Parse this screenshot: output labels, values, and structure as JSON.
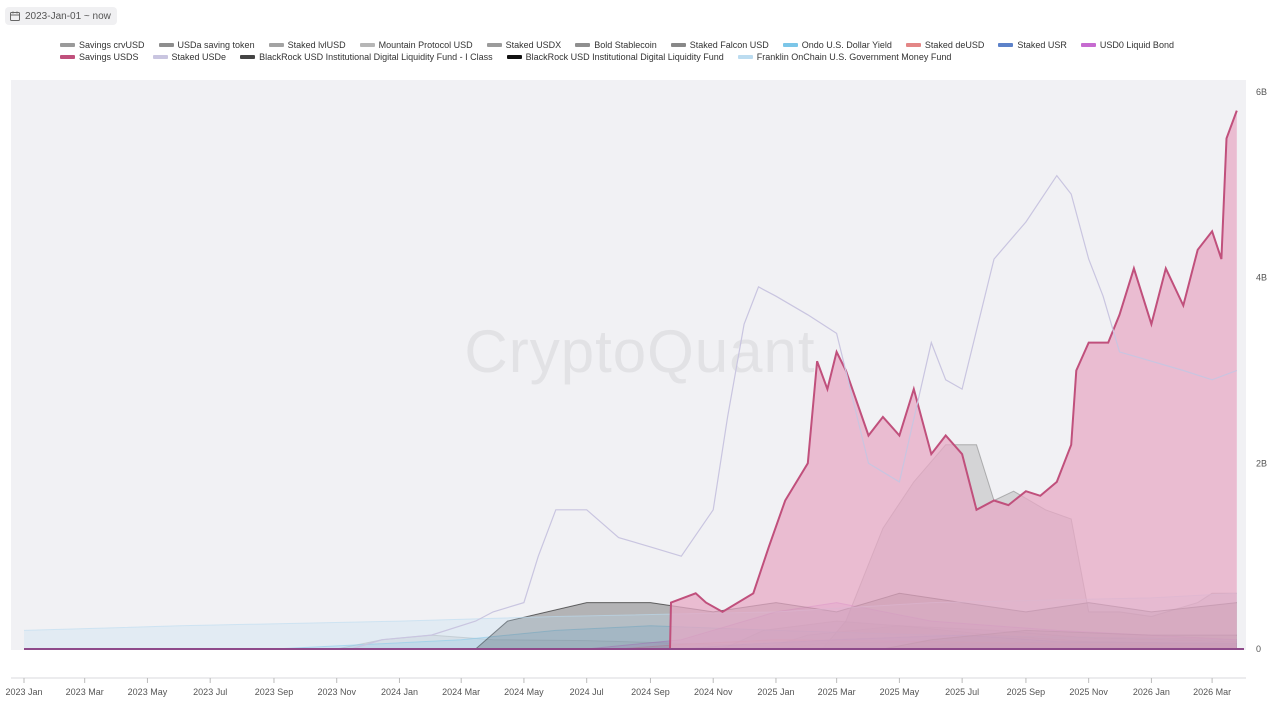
{
  "date_filter": {
    "label": "2023-Jan-01 ~ now"
  },
  "watermark": "CryptoQuant",
  "colors": {
    "background_panel": "#f1f1f4",
    "primary_line": "#c0507c",
    "primary_fill": "#e7a9c5",
    "gray_fill": "#a8a0ab",
    "lavender_line": "#c9c5e0"
  },
  "chart_data": {
    "type": "area",
    "title": "",
    "xlabel": "",
    "ylabel": "",
    "ylim": [
      0,
      6000000000
    ],
    "x_range": [
      "2023-01",
      "2026-04"
    ],
    "grid": false,
    "legend_position": "top",
    "x_ticks": [
      "2023 Jan",
      "2023 Mar",
      "2023 May",
      "2023 Jul",
      "2023 Sep",
      "2023 Nov",
      "2024 Jan",
      "2024 Mar",
      "2024 May",
      "2024 Jul",
      "2024 Sep",
      "2024 Nov",
      "2025 Jan",
      "2025 Mar",
      "2025 May",
      "2025 Jul",
      "2025 Sep",
      "2025 Nov",
      "2026 Jan",
      "2026 Mar"
    ],
    "y_ticks": [
      {
        "value": 0,
        "label": "0"
      },
      {
        "value": 2000000000,
        "label": "2B"
      },
      {
        "value": 4000000000,
        "label": "4B"
      },
      {
        "value": 6000000000,
        "label": "6B"
      }
    ],
    "series": [
      {
        "name": "Savings crvUSD",
        "color": "#9a9a9a",
        "style": "area",
        "points": [
          [
            "2025-02-01",
            0
          ],
          [
            "2025-03-01",
            20000000
          ],
          [
            "2025-06-01",
            30000000
          ],
          [
            "2025-09-01",
            25000000
          ],
          [
            "2026-03-25",
            20000000
          ]
        ]
      },
      {
        "name": "USDa saving token",
        "color": "#8e8e8e",
        "style": "area",
        "points": [
          [
            "2025-01-01",
            0
          ],
          [
            "2025-02-15",
            60000000
          ],
          [
            "2025-06-01",
            80000000
          ],
          [
            "2025-10-01",
            50000000
          ],
          [
            "2026-03-25",
            40000000
          ]
        ]
      },
      {
        "name": "Staked lvlUSD",
        "color": "#a3a3a3",
        "style": "area",
        "points": [
          [
            "2024-12-20",
            0
          ],
          [
            "2025-02-01",
            150000000
          ],
          [
            "2025-05-01",
            250000000
          ],
          [
            "2025-08-01",
            200000000
          ],
          [
            "2025-11-01",
            120000000
          ],
          [
            "2026-03-25",
            80000000
          ]
        ]
      },
      {
        "name": "Mountain Protocol USD",
        "color": "#b6b6b6",
        "style": "area",
        "points": [
          [
            "2023-11-01",
            0
          ],
          [
            "2023-12-15",
            100000000
          ],
          [
            "2024-02-01",
            150000000
          ],
          [
            "2024-04-01",
            100000000
          ],
          [
            "2024-07-01",
            90000000
          ],
          [
            "2024-10-01",
            60000000
          ],
          [
            "2025-01-01",
            30000000
          ],
          [
            "2025-06-01",
            0
          ]
        ]
      },
      {
        "name": "Staked USDX",
        "color": "#9b9b9b",
        "style": "area",
        "points": [
          [
            "2024-11-10",
            0
          ],
          [
            "2024-12-20",
            200000000
          ],
          [
            "2025-03-01",
            300000000
          ],
          [
            "2025-05-01",
            250000000
          ],
          [
            "2025-08-01",
            150000000
          ],
          [
            "2025-11-01",
            80000000
          ],
          [
            "2026-03-25",
            50000000
          ]
        ]
      },
      {
        "name": "Bold Stablecoin",
        "color": "#8f8f8f",
        "style": "area",
        "points": [
          [
            "2025-05-15",
            0
          ],
          [
            "2025-06-15",
            50000000
          ],
          [
            "2025-09-01",
            70000000
          ],
          [
            "2026-03-25",
            60000000
          ]
        ]
      },
      {
        "name": "Staked Falcon USD",
        "color": "#888888",
        "style": "area",
        "points": [
          [
            "2025-02-15",
            0
          ],
          [
            "2025-03-10",
            300000000
          ],
          [
            "2025-04-15",
            1300000000
          ],
          [
            "2025-05-15",
            1800000000
          ],
          [
            "2025-06-15",
            2200000000
          ],
          [
            "2025-07-15",
            2200000000
          ],
          [
            "2025-08-01",
            1600000000
          ],
          [
            "2025-08-20",
            1700000000
          ],
          [
            "2025-09-20",
            1500000000
          ],
          [
            "2025-10-15",
            1400000000
          ],
          [
            "2025-11-01",
            400000000
          ],
          [
            "2025-12-01",
            400000000
          ],
          [
            "2026-01-01",
            350000000
          ],
          [
            "2026-02-15",
            500000000
          ],
          [
            "2026-03-01",
            600000000
          ],
          [
            "2026-03-25",
            600000000
          ]
        ]
      },
      {
        "name": "Ondo U.S. Dollar Yield",
        "color": "#7cc6e8",
        "style": "area",
        "points": [
          [
            "2023-09-01",
            0
          ],
          [
            "2023-12-01",
            50000000
          ],
          [
            "2024-03-01",
            100000000
          ],
          [
            "2024-06-01",
            200000000
          ],
          [
            "2024-09-01",
            250000000
          ],
          [
            "2025-01-01",
            200000000
          ],
          [
            "2025-06-01",
            150000000
          ],
          [
            "2026-03-25",
            100000000
          ]
        ]
      },
      {
        "name": "Staked deUSD",
        "color": "#e38686",
        "style": "area",
        "points": [
          [
            "2024-08-01",
            0
          ],
          [
            "2024-10-01",
            50000000
          ],
          [
            "2025-01-01",
            100000000
          ],
          [
            "2025-06-01",
            80000000
          ],
          [
            "2026-03-25",
            20000000
          ]
        ]
      },
      {
        "name": "Staked USR",
        "color": "#5d82c9",
        "style": "area",
        "points": [
          [
            "2024-10-01",
            0
          ],
          [
            "2024-12-01",
            50000000
          ],
          [
            "2025-03-01",
            100000000
          ],
          [
            "2025-07-01",
            150000000
          ],
          [
            "2025-10-01",
            80000000
          ],
          [
            "2026-03-25",
            60000000
          ]
        ]
      },
      {
        "name": "USD0 Liquid Bond",
        "color": "#c66bd0",
        "style": "area",
        "points": [
          [
            "2024-07-01",
            0
          ],
          [
            "2024-10-01",
            100000000
          ],
          [
            "2025-01-01",
            400000000
          ],
          [
            "2025-03-01",
            500000000
          ],
          [
            "2025-06-01",
            300000000
          ],
          [
            "2025-10-01",
            200000000
          ],
          [
            "2026-03-25",
            100000000
          ]
        ]
      },
      {
        "name": "Savings USDS",
        "color": "#c0507c",
        "style": "area",
        "emphasis": true,
        "points": [
          [
            "2023-01-01",
            0
          ],
          [
            "2024-09-20",
            0
          ],
          [
            "2024-09-21",
            500000000
          ],
          [
            "2024-10-15",
            600000000
          ],
          [
            "2024-10-25",
            500000000
          ],
          [
            "2024-11-10",
            400000000
          ],
          [
            "2024-12-10",
            600000000
          ],
          [
            "2024-12-25",
            1100000000
          ],
          [
            "2025-01-10",
            1600000000
          ],
          [
            "2025-02-01",
            2000000000
          ],
          [
            "2025-02-10",
            3100000000
          ],
          [
            "2025-02-20",
            2800000000
          ],
          [
            "2025-03-01",
            3200000000
          ],
          [
            "2025-03-10",
            3000000000
          ],
          [
            "2025-04-01",
            2300000000
          ],
          [
            "2025-04-15",
            2500000000
          ],
          [
            "2025-05-01",
            2300000000
          ],
          [
            "2025-05-15",
            2800000000
          ],
          [
            "2025-06-01",
            2100000000
          ],
          [
            "2025-06-15",
            2300000000
          ],
          [
            "2025-07-01",
            2100000000
          ],
          [
            "2025-07-15",
            1500000000
          ],
          [
            "2025-08-01",
            1600000000
          ],
          [
            "2025-08-15",
            1550000000
          ],
          [
            "2025-09-01",
            1700000000
          ],
          [
            "2025-09-15",
            1650000000
          ],
          [
            "2025-10-01",
            1800000000
          ],
          [
            "2025-10-15",
            2200000000
          ],
          [
            "2025-10-20",
            3000000000
          ],
          [
            "2025-11-01",
            3300000000
          ],
          [
            "2025-11-20",
            3300000000
          ],
          [
            "2025-12-01",
            3600000000
          ],
          [
            "2025-12-15",
            4100000000
          ],
          [
            "2026-01-01",
            3500000000
          ],
          [
            "2026-01-15",
            4100000000
          ],
          [
            "2026-02-01",
            3700000000
          ],
          [
            "2026-02-15",
            4300000000
          ],
          [
            "2026-03-01",
            4500000000
          ],
          [
            "2026-03-10",
            4200000000
          ],
          [
            "2026-03-15",
            5500000000
          ],
          [
            "2026-03-25",
            5800000000
          ]
        ]
      },
      {
        "name": "Staked USDe",
        "color": "#c9c5e0",
        "style": "line",
        "points": [
          [
            "2023-01-01",
            0
          ],
          [
            "2023-11-15",
            0
          ],
          [
            "2023-12-15",
            100000000
          ],
          [
            "2024-02-01",
            150000000
          ],
          [
            "2024-03-15",
            300000000
          ],
          [
            "2024-04-01",
            400000000
          ],
          [
            "2024-05-01",
            500000000
          ],
          [
            "2024-05-15",
            1000000000
          ],
          [
            "2024-06-01",
            1500000000
          ],
          [
            "2024-07-01",
            1500000000
          ],
          [
            "2024-08-01",
            1200000000
          ],
          [
            "2024-09-01",
            1100000000
          ],
          [
            "2024-10-01",
            1000000000
          ],
          [
            "2024-11-01",
            1500000000
          ],
          [
            "2024-11-15",
            2500000000
          ],
          [
            "2024-12-01",
            3500000000
          ],
          [
            "2024-12-15",
            3900000000
          ],
          [
            "2025-01-01",
            3800000000
          ],
          [
            "2025-02-01",
            3600000000
          ],
          [
            "2025-03-01",
            3400000000
          ],
          [
            "2025-04-01",
            2000000000
          ],
          [
            "2025-05-01",
            1800000000
          ],
          [
            "2025-06-01",
            3300000000
          ],
          [
            "2025-06-15",
            2900000000
          ],
          [
            "2025-07-01",
            2800000000
          ],
          [
            "2025-08-01",
            4200000000
          ],
          [
            "2025-09-01",
            4600000000
          ],
          [
            "2025-10-01",
            5100000000
          ],
          [
            "2025-10-15",
            4900000000
          ],
          [
            "2025-11-01",
            4200000000
          ],
          [
            "2025-11-15",
            3800000000
          ],
          [
            "2025-12-01",
            3200000000
          ],
          [
            "2026-01-01",
            3100000000
          ],
          [
            "2026-02-01",
            3000000000
          ],
          [
            "2026-03-01",
            2900000000
          ],
          [
            "2026-03-25",
            3000000000
          ]
        ]
      },
      {
        "name": "BlackRock USD Institutional Digital Liquidity Fund - I Class",
        "color": "#444444",
        "style": "area",
        "points": [
          [
            "2025-04-15",
            0
          ],
          [
            "2025-06-01",
            100000000
          ],
          [
            "2025-09-01",
            200000000
          ],
          [
            "2026-01-01",
            150000000
          ],
          [
            "2026-03-25",
            150000000
          ]
        ]
      },
      {
        "name": "BlackRock USD Institutional Digital Liquidity Fund",
        "color": "#111111",
        "style": "area",
        "points": [
          [
            "2024-03-15",
            0
          ],
          [
            "2024-04-15",
            300000000
          ],
          [
            "2024-07-01",
            500000000
          ],
          [
            "2024-09-01",
            500000000
          ],
          [
            "2024-11-01",
            400000000
          ],
          [
            "2025-01-01",
            500000000
          ],
          [
            "2025-03-01",
            400000000
          ],
          [
            "2025-05-01",
            600000000
          ],
          [
            "2025-07-01",
            500000000
          ],
          [
            "2025-09-01",
            400000000
          ],
          [
            "2025-11-01",
            500000000
          ],
          [
            "2026-01-01",
            400000000
          ],
          [
            "2026-03-25",
            500000000
          ]
        ]
      },
      {
        "name": "Franklin OnChain U.S. Government Money Fund",
        "color": "#bcdcf0",
        "style": "area",
        "points": [
          [
            "2023-01-01",
            200000000
          ],
          [
            "2023-06-01",
            250000000
          ],
          [
            "2024-01-01",
            300000000
          ],
          [
            "2024-06-01",
            350000000
          ],
          [
            "2025-01-01",
            400000000
          ],
          [
            "2025-06-01",
            500000000
          ],
          [
            "2026-01-01",
            550000000
          ],
          [
            "2026-03-25",
            600000000
          ]
        ]
      }
    ]
  }
}
